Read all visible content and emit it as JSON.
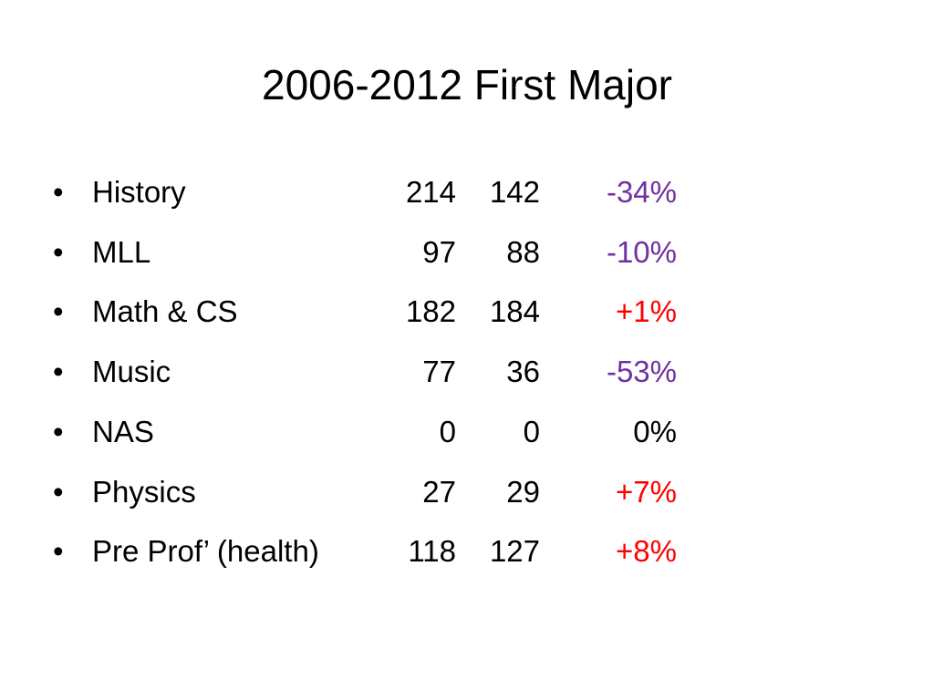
{
  "title": "2006-2012 First Major",
  "rows": [
    {
      "name": "History",
      "v2006": 214,
      "v2012": 142,
      "change": "-34%",
      "color": "#7030a0"
    },
    {
      "name": "MLL",
      "v2006": 97,
      "v2012": 88,
      "change": "-10%",
      "color": "#7030a0"
    },
    {
      "name": "Math & CS",
      "v2006": 182,
      "v2012": 184,
      "change": "+1%",
      "color": "#ff0000"
    },
    {
      "name": "Music",
      "v2006": 77,
      "v2012": 36,
      "change": "-53%",
      "color": "#7030a0"
    },
    {
      "name": "NAS",
      "v2006": 0,
      "v2012": 0,
      "change": "0%",
      "color": "#000000"
    },
    {
      "name": "Physics",
      "v2006": 27,
      "v2012": 29,
      "change": "+7%",
      "color": "#ff0000"
    },
    {
      "name": "Pre Prof’ (health)",
      "v2006": 118,
      "v2012": 127,
      "change": "+8%",
      "color": "#ff0000"
    }
  ]
}
